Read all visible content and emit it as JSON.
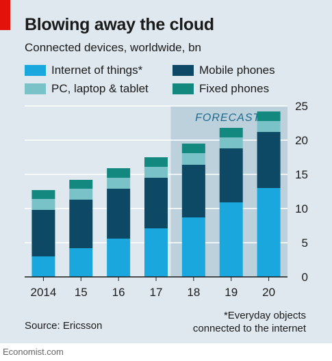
{
  "title": "Blowing away the cloud",
  "subtitle": "Connected devices, worldwide, bn",
  "source": "Source: Ericsson",
  "note_line1": "*Everyday objects",
  "note_line2": "connected to the internet",
  "footer": "Economist.com",
  "forecast_label": "FORECAST",
  "colors": {
    "iot": "#1aa7dd",
    "mobile": "#0d4864",
    "pc": "#79c2c8",
    "fixed": "#12887f",
    "forecast_band": "#bdd1dd",
    "gridline": "#ffffff",
    "axis": "#1a1a1a",
    "accent_red": "#e3120b"
  },
  "chart_data": {
    "type": "bar",
    "stacked": true,
    "categories": [
      "2014",
      "15",
      "16",
      "17",
      "18",
      "19",
      "20"
    ],
    "series": [
      {
        "name": "Internet of things*",
        "key": "iot",
        "values": [
          3.0,
          4.2,
          5.6,
          7.1,
          8.7,
          10.9,
          13.0
        ]
      },
      {
        "name": "Mobile phones",
        "key": "mobile",
        "values": [
          6.8,
          7.1,
          7.3,
          7.4,
          7.7,
          7.9,
          8.2
        ]
      },
      {
        "name": "PC, laptop & tablet",
        "key": "pc",
        "values": [
          1.6,
          1.6,
          1.6,
          1.6,
          1.7,
          1.6,
          1.6
        ]
      },
      {
        "name": "Fixed phones",
        "key": "fixed",
        "values": [
          1.3,
          1.3,
          1.4,
          1.4,
          1.4,
          1.4,
          1.4
        ]
      }
    ],
    "ylim": [
      0,
      25
    ],
    "yticks": [
      0,
      5,
      10,
      15,
      20,
      25
    ],
    "y_axis_side": "right",
    "forecast_categories": [
      "18",
      "19",
      "20"
    ],
    "grid": true,
    "legend_placement": "top"
  }
}
